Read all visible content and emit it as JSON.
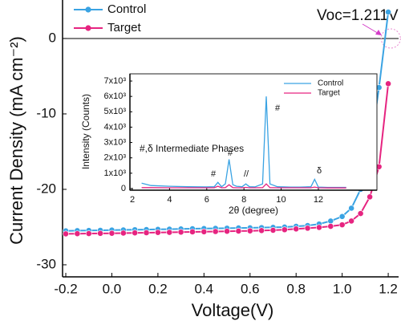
{
  "chart_data": [
    {
      "type": "line",
      "marker": "circle",
      "xlabel": "Voltage(V)",
      "ylabel": "Current Density (mA cm⁻²)",
      "annotation": "Voc=1.211V",
      "legend": "upper left",
      "x": [
        -0.2,
        -0.15,
        -0.1,
        -0.05,
        0,
        0.05,
        0.1,
        0.15,
        0.2,
        0.25,
        0.3,
        0.35,
        0.4,
        0.45,
        0.5,
        0.55,
        0.6,
        0.65,
        0.7,
        0.75,
        0.8,
        0.85,
        0.9,
        0.95,
        1.0,
        1.04,
        1.08,
        1.12,
        1.16,
        1.2
      ],
      "series": [
        {
          "name": "Control",
          "color": "#3aa3e3",
          "values": [
            -25.5,
            -25.47,
            -25.45,
            -25.43,
            -25.4,
            -25.38,
            -25.35,
            -25.33,
            -25.3,
            -25.28,
            -25.25,
            -25.22,
            -25.2,
            -25.17,
            -25.15,
            -25.12,
            -25.1,
            -25.07,
            -25.04,
            -25.0,
            -24.9,
            -24.8,
            -24.6,
            -24.2,
            -23.6,
            -22.5,
            -20.0,
            -15.0,
            -6.5,
            3.5
          ]
        },
        {
          "name": "Target",
          "color": "#e62480",
          "values": [
            -25.9,
            -25.88,
            -25.86,
            -25.84,
            -25.82,
            -25.8,
            -25.77,
            -25.75,
            -25.72,
            -25.7,
            -25.67,
            -25.64,
            -25.62,
            -25.59,
            -25.56,
            -25.53,
            -25.5,
            -25.46,
            -25.42,
            -25.35,
            -25.25,
            -25.15,
            -25.05,
            -24.9,
            -24.7,
            -24.2,
            -23.2,
            -21.0,
            -17.0,
            -6.0
          ]
        }
      ],
      "xlim": [
        -0.214,
        1.245
      ],
      "ylim": [
        -31.6,
        5.1
      ],
      "xticks": [
        -0.2,
        {
          "value": 0,
          "label": "0.0"
        },
        0.2,
        0.4,
        0.6,
        0.8,
        {
          "value": 1,
          "label": "1.0"
        },
        1.2
      ],
      "yticks": [
        0,
        -10,
        -20,
        -30
      ]
    },
    {
      "type": "line",
      "xlabel": "2θ (degree)",
      "ylabel": "Intensity (Counts)",
      "subtitle": "#,δ Intermediate Phases",
      "peak_labels": [
        "#",
        "#",
        "//",
        "#",
        "δ"
      ],
      "legend": "upper right",
      "x": [
        2.5,
        3,
        4,
        5,
        6,
        6.4,
        6.6,
        6.8,
        7.0,
        7.2,
        7.4,
        7.6,
        7.9,
        8.1,
        8.3,
        8.6,
        9.0,
        9.2,
        9.4,
        9.8,
        10.5,
        11.0,
        11.6,
        11.8,
        12.0,
        12.5,
        13.0,
        13.5
      ],
      "series": [
        {
          "name": "Control",
          "color": "#3aa3e3",
          "values": [
            350,
            200,
            150,
            120,
            110,
            120,
            400,
            120,
            300,
            1900,
            250,
            150,
            120,
            300,
            120,
            110,
            300,
            6000,
            300,
            120,
            100,
            100,
            120,
            600,
            100,
            80,
            80,
            80
          ]
        },
        {
          "name": "Target",
          "color": "#e62480",
          "values": [
            60,
            60,
            50,
            50,
            50,
            50,
            150,
            50,
            60,
            250,
            60,
            50,
            50,
            80,
            50,
            50,
            60,
            300,
            60,
            50,
            50,
            50,
            50,
            100,
            50,
            40,
            40,
            40
          ]
        }
      ],
      "xlim": [
        1.87,
        15.15
      ],
      "ylim": [
        -105,
        7470
      ],
      "xticks": [
        2,
        4,
        6,
        8,
        10,
        12
      ],
      "yticks": [
        0,
        {
          "value": 1000,
          "label": "1x10³"
        },
        {
          "value": 2000,
          "label": "2x10³"
        },
        {
          "value": 3000,
          "label": "3x10³"
        },
        {
          "value": 4000,
          "label": "4x10³"
        },
        {
          "value": 5000,
          "label": "5x10³"
        },
        {
          "value": 6000,
          "label": "6x10³"
        },
        {
          "value": 7000,
          "label": "7x10³"
        }
      ]
    }
  ]
}
